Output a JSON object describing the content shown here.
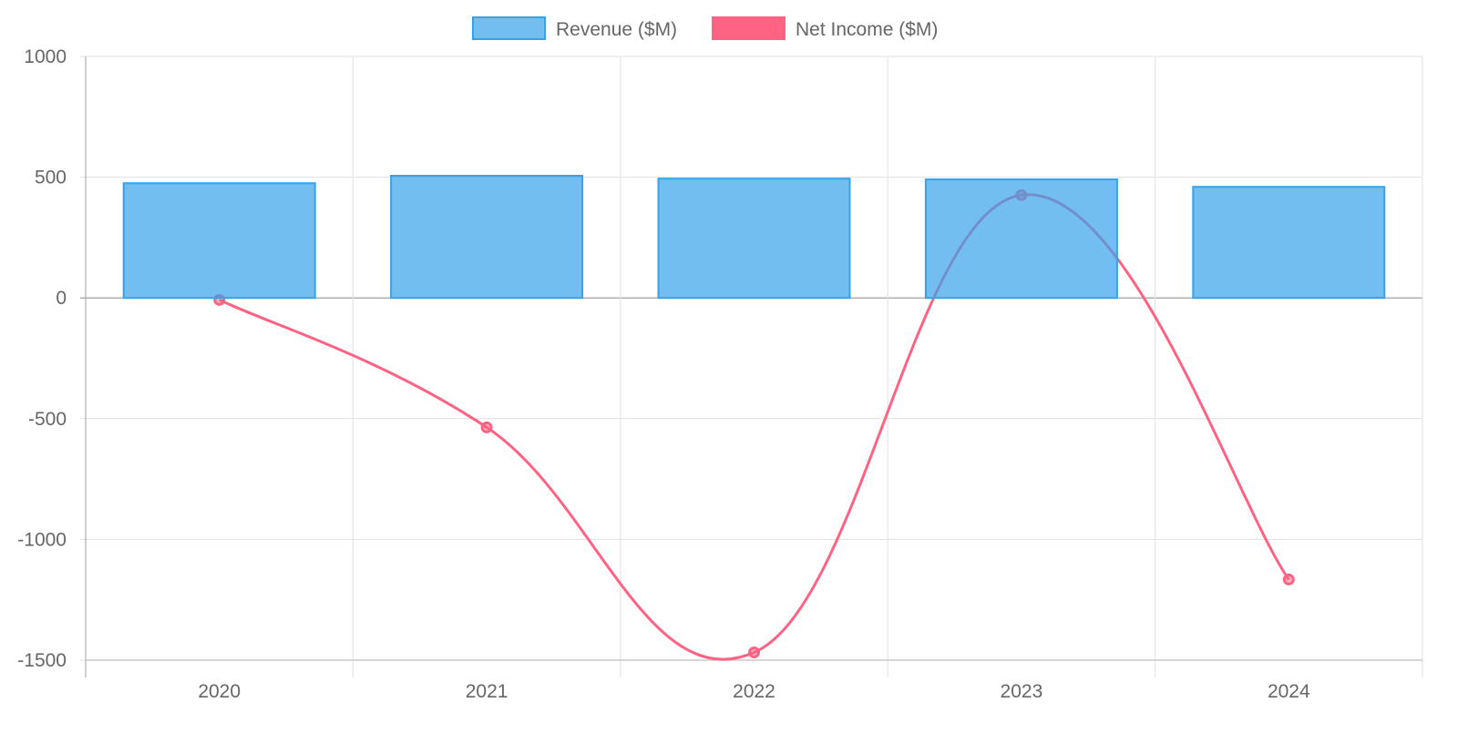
{
  "chart_data": {
    "type": "bar",
    "title": "",
    "categories": [
      "2020",
      "2021",
      "2022",
      "2023",
      "2024"
    ],
    "series": [
      {
        "name": "Revenue ($M)",
        "type": "bar",
        "values": [
          475,
          506,
          494,
          491,
          460
        ],
        "color": "#36a2eb"
      },
      {
        "name": "Net Income ($M)",
        "type": "line",
        "values": [
          -8,
          -536,
          -1468,
          426,
          -1166
        ],
        "color": "#ff6384"
      }
    ],
    "yticks": [
      "1000",
      "500",
      "0",
      "-500",
      "-1000",
      "-1500"
    ],
    "ylim": [
      -1500,
      1000
    ],
    "xlabel": "",
    "ylabel": "",
    "grid": true,
    "legend": "top-center"
  }
}
